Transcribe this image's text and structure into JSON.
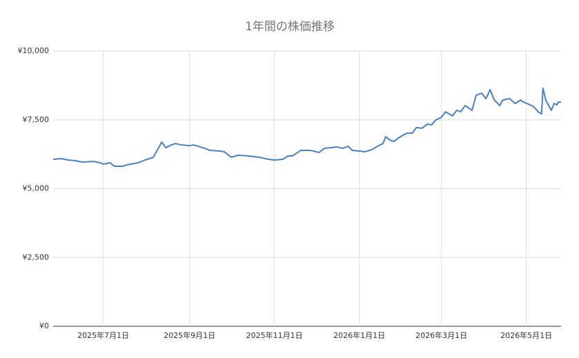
{
  "chart_data": {
    "type": "line",
    "title": "1年間の株価推移",
    "xlim": [
      "2025-05-26",
      "2026-05-26"
    ],
    "xticks": [
      {
        "value": "2025-07-01",
        "label": "2025年7月1日"
      },
      {
        "value": "2025-09-01",
        "label": "2025年9月1日"
      },
      {
        "value": "2025-11-01",
        "label": "2025年11月1日"
      },
      {
        "value": "2026-01-01",
        "label": "2026年1月1日"
      },
      {
        "value": "2026-03-01",
        "label": "2026年3月1日"
      },
      {
        "value": "2026-05-01",
        "label": "2026年5月1日"
      }
    ],
    "ylim": [
      0,
      10000
    ],
    "yticks": [
      {
        "value": 0,
        "label": "¥0"
      },
      {
        "value": 2500,
        "label": "¥2,500"
      },
      {
        "value": 5000,
        "label": "¥5,000"
      },
      {
        "value": 7500,
        "label": "¥7,500"
      },
      {
        "value": 10000,
        "label": "¥10,000"
      }
    ],
    "grid": true,
    "x": [
      "2025-05-26",
      "2025-06-01",
      "2025-06-06",
      "2025-06-11",
      "2025-06-16",
      "2025-06-24",
      "2025-06-29",
      "2025-07-01",
      "2025-07-06",
      "2025-07-09",
      "2025-07-15",
      "2025-07-18",
      "2025-07-26",
      "2025-07-31",
      "2025-08-06",
      "2025-08-12",
      "2025-08-15",
      "2025-08-19",
      "2025-08-22",
      "2025-08-26",
      "2025-09-01",
      "2025-09-04",
      "2025-09-09",
      "2025-09-16",
      "2025-09-23",
      "2025-09-26",
      "2025-10-01",
      "2025-10-06",
      "2025-10-13",
      "2025-10-21",
      "2025-10-28",
      "2025-11-01",
      "2025-11-07",
      "2025-11-11",
      "2025-11-14",
      "2025-11-20",
      "2025-11-27",
      "2025-12-03",
      "2025-12-07",
      "2025-12-12",
      "2025-12-16",
      "2025-12-20",
      "2025-12-24",
      "2025-12-27",
      "2026-01-01",
      "2026-01-05",
      "2026-01-10",
      "2026-01-14",
      "2026-01-18",
      "2026-01-20",
      "2026-01-23",
      "2026-01-26",
      "2026-01-29",
      "2026-02-04",
      "2026-02-08",
      "2026-02-11",
      "2026-02-15",
      "2026-02-19",
      "2026-02-22",
      "2026-02-25",
      "2026-03-01",
      "2026-03-04",
      "2026-03-09",
      "2026-03-12",
      "2026-03-15",
      "2026-03-18",
      "2026-03-23",
      "2026-03-26",
      "2026-03-30",
      "2026-04-02",
      "2026-04-05",
      "2026-04-08",
      "2026-04-12",
      "2026-04-14",
      "2026-04-19",
      "2026-04-23",
      "2026-04-27",
      "2026-04-29",
      "2026-05-06",
      "2026-05-10",
      "2026-05-12",
      "2026-05-13",
      "2026-05-15",
      "2026-05-19",
      "2026-05-21",
      "2026-05-23",
      "2026-05-24",
      "2026-05-26"
    ],
    "series": [
      {
        "color": "#4a7fc4",
        "values": [
          6065,
          6090,
          6040,
          6015,
          5965,
          5990,
          5940,
          5890,
          5940,
          5815,
          5815,
          5865,
          5940,
          6040,
          6140,
          6690,
          6490,
          6590,
          6640,
          6590,
          6565,
          6590,
          6515,
          6390,
          6365,
          6340,
          6140,
          6215,
          6190,
          6140,
          6065,
          6040,
          6065,
          6190,
          6190,
          6390,
          6390,
          6315,
          6465,
          6490,
          6515,
          6465,
          6540,
          6390,
          6365,
          6340,
          6415,
          6540,
          6640,
          6890,
          6765,
          6715,
          6840,
          7015,
          7015,
          7220,
          7195,
          7345,
          7320,
          7495,
          7595,
          7795,
          7645,
          7845,
          7795,
          8020,
          7845,
          8395,
          8470,
          8270,
          8595,
          8220,
          8020,
          8220,
          8270,
          8095,
          8220,
          8145,
          7995,
          7770,
          7720,
          8645,
          8220,
          7845,
          8095,
          8045,
          8145,
          8145
        ]
      }
    ]
  }
}
